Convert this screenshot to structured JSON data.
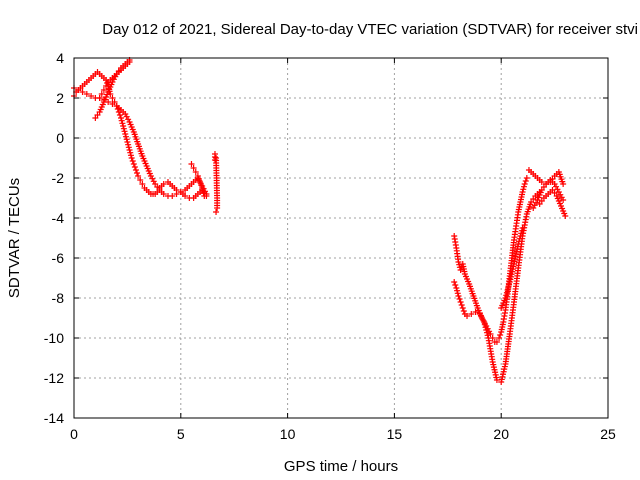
{
  "chart_data": {
    "type": "scatter",
    "title": "Day 012 of 2021, Sidereal Day-to-day VTEC variation (SDTVAR) for receiver stvi",
    "xlabel": "GPS time / hours",
    "ylabel": "SDTVAR / TECUs",
    "xlim": [
      0,
      25
    ],
    "ylim": [
      -14,
      4
    ],
    "xticks": [
      "0",
      "5",
      "10",
      "15",
      "20",
      "25"
    ],
    "yticks": [
      "-14",
      "-12",
      "-10",
      "-8",
      "-6",
      "-4",
      "-2",
      "0",
      "2",
      "4"
    ],
    "grid": true,
    "marker": "+",
    "color": "#ff0000",
    "series": [
      {
        "x": [
          0.0,
          0.1,
          0.2,
          0.3,
          0.4,
          0.5,
          0.6,
          0.7,
          0.8,
          0.9,
          1.0,
          1.1,
          1.2,
          1.3,
          1.4,
          1.5,
          1.6,
          1.7,
          1.8,
          1.9,
          2.0,
          2.1,
          2.2,
          2.3,
          2.4,
          2.5,
          2.6,
          2.7,
          2.8,
          2.9,
          3.0,
          3.1,
          3.2,
          3.3,
          3.4,
          3.5,
          3.6,
          3.7,
          3.8,
          3.9,
          4.0,
          4.2,
          4.4,
          4.6,
          4.8,
          5.0,
          5.2,
          5.4,
          5.6,
          5.8,
          6.0,
          6.2
        ],
        "y": [
          2.1,
          2.3,
          2.4,
          2.5,
          2.6,
          2.7,
          2.8,
          2.9,
          3.0,
          3.1,
          3.2,
          3.3,
          3.2,
          3.1,
          3.0,
          2.9,
          2.6,
          2.2,
          2.0,
          1.8,
          1.6,
          1.3,
          1.0,
          0.6,
          0.2,
          -0.2,
          -0.6,
          -1.0,
          -1.3,
          -1.6,
          -1.9,
          -2.1,
          -2.3,
          -2.5,
          -2.6,
          -2.7,
          -2.8,
          -2.8,
          -2.8,
          -2.7,
          -2.5,
          -2.3,
          -2.2,
          -2.4,
          -2.6,
          -2.7,
          -2.6,
          -2.4,
          -2.2,
          -2.0,
          -2.4,
          -2.8
        ]
      },
      {
        "x": [
          0.0,
          0.2,
          0.4,
          0.6,
          0.8,
          1.0,
          1.2,
          1.4,
          1.6,
          1.8,
          2.0,
          2.2,
          2.4,
          2.6,
          2.8,
          3.0,
          3.2,
          3.4,
          3.6,
          3.8,
          4.0,
          4.2,
          4.4,
          4.6,
          4.8,
          5.0,
          5.2,
          5.4,
          5.6,
          5.8,
          6.0,
          6.2
        ],
        "y": [
          2.5,
          2.4,
          2.3,
          2.2,
          2.1,
          2.0,
          2.0,
          1.9,
          1.8,
          1.7,
          1.6,
          1.4,
          1.2,
          0.8,
          0.3,
          -0.3,
          -0.9,
          -1.4,
          -1.9,
          -2.3,
          -2.6,
          -2.8,
          -2.9,
          -2.9,
          -2.8,
          -2.7,
          -2.9,
          -3.0,
          -3.0,
          -2.8,
          -2.6,
          -2.9
        ]
      },
      {
        "x": [
          1.0,
          1.2,
          1.4,
          1.6,
          1.8,
          2.0,
          2.2,
          2.4,
          2.6
        ],
        "y": [
          1.0,
          1.3,
          1.8,
          2.3,
          2.8,
          3.2,
          3.5,
          3.7,
          3.9
        ]
      },
      {
        "x": [
          1.2,
          1.3,
          1.4,
          1.5,
          1.6,
          1.7,
          1.8,
          1.9,
          2.0,
          2.1,
          2.2,
          2.3,
          2.4,
          2.5,
          2.6
        ],
        "y": [
          2.0,
          2.2,
          2.4,
          2.6,
          2.8,
          2.9,
          3.0,
          3.1,
          3.2,
          3.3,
          3.4,
          3.5,
          3.6,
          3.7,
          3.8
        ]
      },
      {
        "x": [
          5.5,
          5.6,
          5.7,
          5.8,
          5.9,
          6.0,
          6.1
        ],
        "y": [
          -1.3,
          -1.5,
          -1.7,
          -1.9,
          -2.2,
          -2.5,
          -2.9
        ]
      },
      {
        "x": [
          6.6,
          6.6,
          6.65,
          6.7,
          6.7,
          6.65
        ],
        "y": [
          -0.8,
          -1.1,
          -1.0,
          -3.0,
          -3.5,
          -3.7
        ]
      },
      {
        "x": [
          17.8,
          17.9,
          18.0,
          18.1,
          18.2,
          18.3,
          18.5,
          18.7,
          18.9,
          19.1,
          19.3,
          19.5,
          19.6,
          19.7,
          19.8,
          19.9,
          20.0,
          20.1,
          20.2,
          20.3,
          20.4,
          20.5,
          20.6,
          20.7,
          20.8,
          20.9,
          21.0,
          21.1,
          21.2
        ],
        "y": [
          -4.9,
          -5.5,
          -6.2,
          -6.6,
          -6.3,
          -6.8,
          -7.3,
          -7.9,
          -8.5,
          -9.0,
          -9.4,
          -9.8,
          -10.0,
          -10.2,
          -10.2,
          -10.0,
          -9.7,
          -9.2,
          -8.6,
          -7.8,
          -6.9,
          -6.0,
          -5.1,
          -4.4,
          -3.7,
          -3.2,
          -2.7,
          -2.3,
          -2.0
        ]
      },
      {
        "x": [
          17.8,
          17.9,
          18.0,
          18.1,
          18.2,
          18.3,
          18.4,
          18.6,
          18.8,
          19.0,
          19.2,
          19.4,
          19.6,
          19.8,
          20.0,
          20.2,
          20.4,
          20.6,
          20.8,
          21.0,
          21.2,
          21.4,
          21.6,
          21.8
        ],
        "y": [
          -7.2,
          -7.5,
          -7.9,
          -8.2,
          -8.5,
          -8.8,
          -8.9,
          -8.8,
          -8.7,
          -8.8,
          -9.2,
          -10.0,
          -11.2,
          -12.1,
          -12.2,
          -11.3,
          -9.8,
          -8.2,
          -6.5,
          -4.9,
          -3.8,
          -3.2,
          -2.9,
          -2.7
        ]
      },
      {
        "x": [
          20.0,
          20.2,
          20.4,
          20.6,
          20.8,
          21.0
        ],
        "y": [
          -8.5,
          -8.0,
          -7.2,
          -6.3,
          -5.3,
          -4.5
        ]
      },
      {
        "x": [
          21.3,
          21.5,
          21.7,
          21.9,
          22.1,
          22.3,
          22.5,
          22.7,
          22.9
        ],
        "y": [
          -1.6,
          -1.8,
          -2.0,
          -2.2,
          -2.3,
          -2.2,
          -1.9,
          -1.7,
          -2.3
        ]
      },
      {
        "x": [
          21.5,
          21.7,
          21.9,
          22.1,
          22.3,
          22.5,
          22.7,
          22.9
        ],
        "y": [
          -3.5,
          -3.1,
          -2.6,
          -2.3,
          -2.1,
          -2.3,
          -2.7,
          -3.1
        ]
      },
      {
        "x": [
          21.8,
          22.0,
          22.2,
          22.4,
          22.6,
          22.8,
          23.0
        ],
        "y": [
          -3.3,
          -3.0,
          -2.8,
          -2.6,
          -2.9,
          -3.4,
          -3.9
        ]
      }
    ]
  }
}
